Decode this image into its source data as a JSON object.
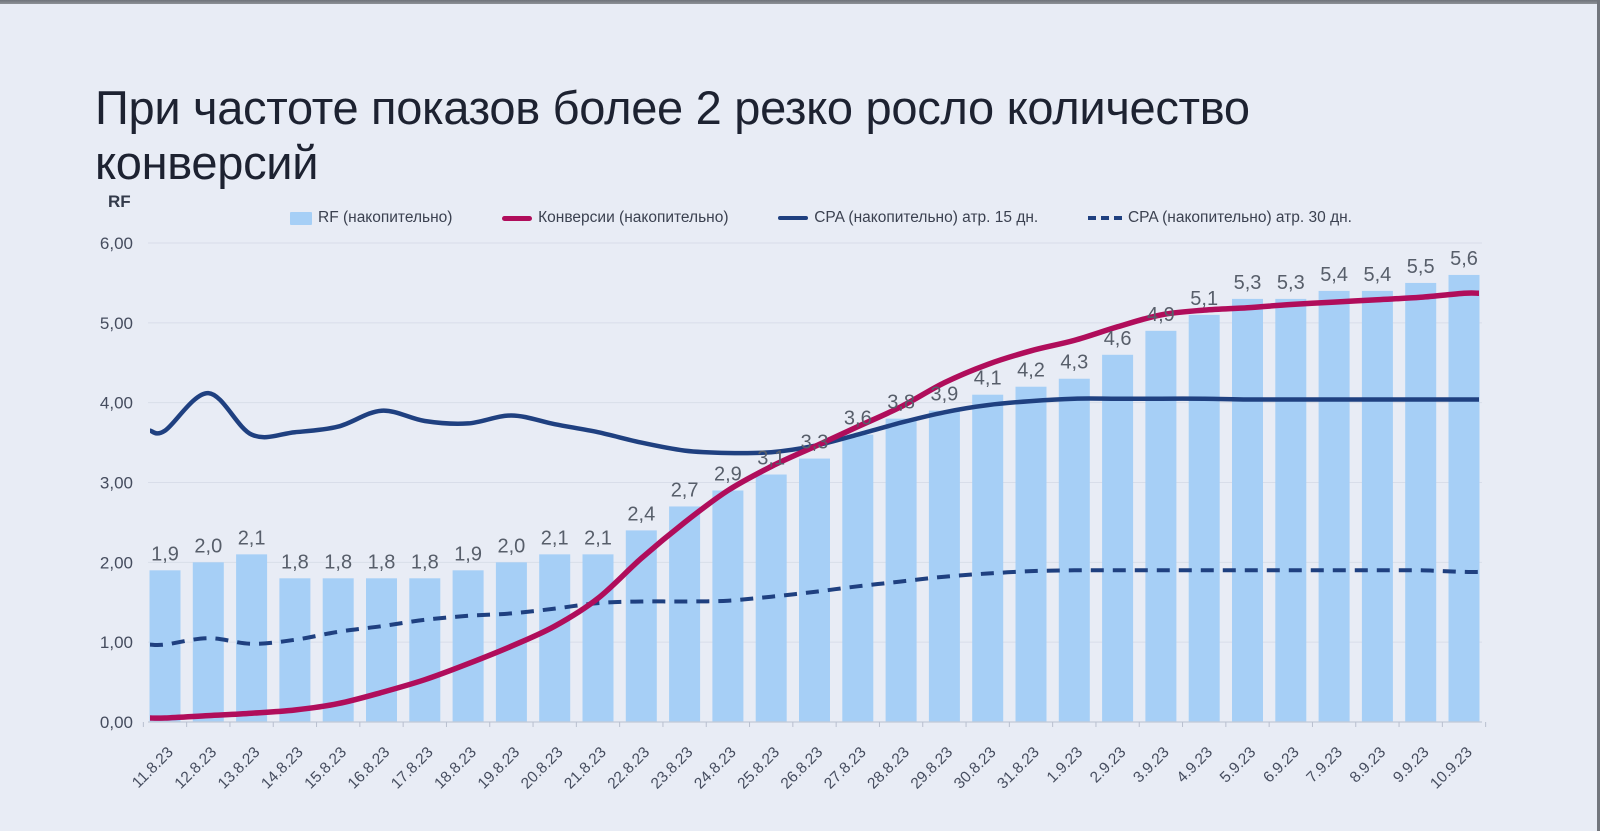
{
  "title": "При частоте показов более 2 резко росло количество конверсий",
  "axis_title": "RF",
  "legend": [
    {
      "label": "RF (накопительно)",
      "type": "bar"
    },
    {
      "label": "Конверсии (накопительно)",
      "type": "line"
    },
    {
      "label": "CPA (накопительно) атр. 15 дн.",
      "type": "line"
    },
    {
      "label": "CPA (накопительно) атр. 30 дн.",
      "type": "dashed"
    }
  ],
  "colors": {
    "background": "#E8ECF5",
    "bar": "#A6CFF6",
    "conversions": "#B00D5B",
    "cpa": "#1F4080",
    "title_text": "#1d2231",
    "tick_text": "#454c5e",
    "bar_label_text": "#575e6a"
  },
  "chart_data": {
    "type": "bar",
    "subtype": "combo bar + smooth lines",
    "title": "При частоте показов более 2 резко росло количество конверсий",
    "xlabel": "",
    "ylabel": "RF",
    "ylim": [
      0,
      6
    ],
    "y_ticks": [
      "0,00",
      "1,00",
      "2,00",
      "3,00",
      "4,00",
      "5,00",
      "6,00"
    ],
    "grid": "faint horizontal gridlines",
    "legend_position": "top",
    "categories": [
      "11.8.23",
      "12.8.23",
      "13.8.23",
      "14.8.23",
      "15.8.23",
      "16.8.23",
      "17.8.23",
      "18.8.23",
      "19.8.23",
      "20.8.23",
      "21.8.23",
      "22.8.23",
      "23.8.23",
      "24.8.23",
      "25.8.23",
      "26.8.23",
      "27.8.23",
      "28.8.23",
      "29.8.23",
      "30.8.23",
      "31.8.23",
      "1.9.23",
      "2.9.23",
      "3.9.23",
      "4.9.23",
      "5.9.23",
      "6.9.23",
      "7.9.23",
      "8.9.23",
      "9.9.23",
      "10.9.23"
    ],
    "series": [
      {
        "name": "RF (накопительно)",
        "type": "bar",
        "values": [
          1.9,
          2.0,
          2.1,
          1.8,
          1.8,
          1.8,
          1.8,
          1.9,
          2.0,
          2.1,
          2.1,
          2.4,
          2.7,
          2.9,
          3.1,
          3.3,
          3.6,
          3.8,
          3.9,
          4.1,
          4.2,
          4.3,
          4.6,
          4.9,
          5.1,
          5.3,
          5.3,
          5.4,
          5.4,
          5.5,
          5.6
        ],
        "labels": [
          "1,9",
          "2,0",
          "2,1",
          "1,8",
          "1,8",
          "1,8",
          "1,8",
          "1,9",
          "2,0",
          "2,1",
          "2,1",
          "2,4",
          "2,7",
          "2,9",
          "3,1",
          "3,3",
          "3,6",
          "3,8",
          "3,9",
          "4,1",
          "4,2",
          "4,3",
          "4,6",
          "4,9",
          "5,1",
          "5,3",
          "5,3",
          "5,4",
          "5,4",
          "5,5",
          "5,6"
        ]
      },
      {
        "name": "Конверсии (накопительно)",
        "type": "line",
        "values": [
          0.05,
          0.08,
          0.11,
          0.15,
          0.23,
          0.37,
          0.53,
          0.73,
          0.95,
          1.2,
          1.55,
          2.05,
          2.5,
          2.9,
          3.2,
          3.45,
          3.7,
          3.95,
          4.25,
          4.48,
          4.65,
          4.78,
          4.95,
          5.1,
          5.16,
          5.19,
          5.23,
          5.26,
          5.29,
          5.32,
          5.37
        ]
      },
      {
        "name": "CPA (накопительно) атр. 15 дн.",
        "type": "line",
        "values": [
          3.65,
          4.12,
          3.6,
          3.63,
          3.7,
          3.9,
          3.77,
          3.74,
          3.84,
          3.73,
          3.63,
          3.5,
          3.4,
          3.37,
          3.38,
          3.46,
          3.6,
          3.75,
          3.88,
          3.97,
          4.02,
          4.05,
          4.05,
          4.05,
          4.05,
          4.04,
          4.04,
          4.04,
          4.04,
          4.04,
          4.04
        ]
      },
      {
        "name": "CPA (накопительно) атр. 30 дн.",
        "type": "line-dashed",
        "values": [
          0.97,
          1.05,
          0.98,
          1.03,
          1.13,
          1.2,
          1.28,
          1.33,
          1.36,
          1.42,
          1.49,
          1.51,
          1.51,
          1.52,
          1.57,
          1.63,
          1.7,
          1.76,
          1.82,
          1.86,
          1.89,
          1.9,
          1.9,
          1.9,
          1.9,
          1.9,
          1.9,
          1.9,
          1.9,
          1.9,
          1.88
        ]
      }
    ]
  }
}
